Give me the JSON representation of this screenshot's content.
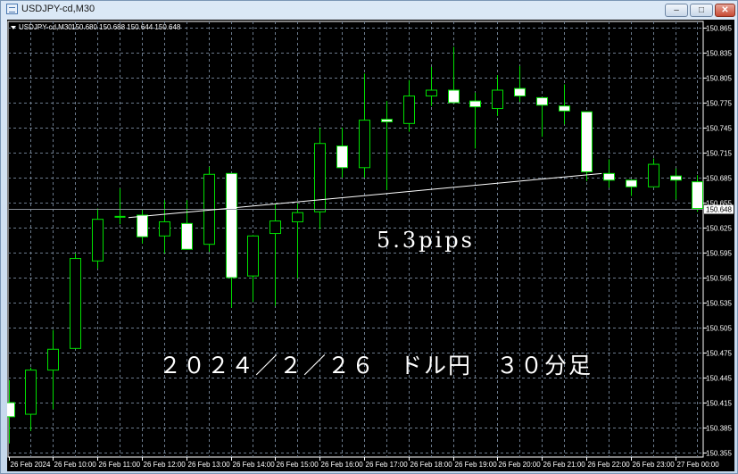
{
  "window": {
    "title": "USDJPY-cd,M30",
    "buttons": {
      "minimize": "–",
      "maximize": "□",
      "close": "✕"
    }
  },
  "chart_header": {
    "symbol": "USDJPY-cd,M30",
    "values": "150.680 150.688 150.644 150.648",
    "menu_icon": "triangle-down-icon"
  },
  "colors": {
    "background": "#000000",
    "grid": "#6b7a8c",
    "bull_body": "#000000",
    "bear_body": "#ffffff",
    "candle_outline": "#00e000",
    "text": "#ffffff",
    "trendline": "#ffffff",
    "bid_line": "#8a9099"
  },
  "chart_data": {
    "type": "candlestick",
    "timeframe": "M30",
    "ylim": [
      150.355,
      150.865
    ],
    "grid": true,
    "price_ticks": [
      "150.865",
      "150.835",
      "150.805",
      "150.775",
      "150.745",
      "150.715",
      "150.685",
      "150.655",
      "150.625",
      "150.595",
      "150.565",
      "150.535",
      "150.505",
      "150.475",
      "150.445",
      "150.415",
      "150.385",
      "150.355"
    ],
    "time_ticks": [
      "26 Feb 2024",
      "26 Feb 10:00",
      "26 Feb 11:00",
      "26 Feb 12:00",
      "26 Feb 13:00",
      "26 Feb 14:00",
      "26 Feb 15:00",
      "26 Feb 16:00",
      "26 Feb 17:00",
      "26 Feb 18:00",
      "26 Feb 19:00",
      "26 Feb 20:00",
      "26 Feb 21:00",
      "26 Feb 22:00",
      "26 Feb 23:00",
      "27 Feb 00:00"
    ],
    "current_price": "150.648",
    "columns": [
      "open",
      "high",
      "low",
      "close"
    ],
    "candles": [
      [
        150.415,
        150.442,
        150.366,
        150.398
      ],
      [
        150.401,
        150.457,
        150.381,
        150.454
      ],
      [
        150.454,
        150.502,
        150.407,
        150.479
      ],
      [
        150.48,
        150.594,
        150.48,
        150.588
      ],
      [
        150.585,
        150.648,
        150.576,
        150.635
      ],
      [
        150.638,
        150.672,
        150.629,
        150.638
      ],
      [
        150.64,
        150.646,
        150.606,
        150.614
      ],
      [
        150.615,
        150.658,
        150.594,
        150.632
      ],
      [
        150.63,
        150.658,
        150.599,
        150.599
      ],
      [
        150.605,
        150.698,
        150.596,
        150.689
      ],
      [
        150.69,
        150.69,
        150.529,
        150.565
      ],
      [
        150.567,
        150.616,
        150.536,
        150.615
      ],
      [
        150.618,
        150.654,
        150.531,
        150.633
      ],
      [
        150.632,
        150.654,
        150.564,
        150.643
      ],
      [
        150.644,
        150.745,
        150.623,
        150.726
      ],
      [
        150.723,
        150.745,
        150.685,
        150.697
      ],
      [
        150.697,
        150.81,
        150.685,
        150.754
      ],
      [
        150.755,
        150.777,
        150.67,
        150.752
      ],
      [
        150.75,
        150.802,
        150.74,
        150.783
      ],
      [
        150.783,
        150.818,
        150.771,
        150.79
      ],
      [
        150.79,
        150.842,
        150.775,
        150.775
      ],
      [
        150.777,
        150.787,
        150.72,
        150.77
      ],
      [
        150.768,
        150.808,
        150.759,
        150.79
      ],
      [
        150.792,
        150.819,
        150.776,
        150.783
      ],
      [
        150.781,
        150.781,
        150.734,
        150.772
      ],
      [
        150.771,
        150.797,
        150.749,
        150.765
      ],
      [
        150.764,
        150.764,
        150.681,
        150.692
      ],
      [
        150.69,
        150.707,
        150.673,
        150.682
      ],
      [
        150.682,
        150.682,
        150.663,
        150.674
      ],
      [
        150.674,
        150.708,
        150.674,
        150.701
      ],
      [
        150.687,
        150.696,
        150.659,
        150.682
      ],
      [
        150.68,
        150.688,
        150.644,
        150.648
      ]
    ],
    "trendline": {
      "start_price": 150.637,
      "end_price": 150.69
    }
  },
  "annotations": {
    "pips": "5.3pips",
    "caption": "２０２４／２／２６　ドル円　３０分足"
  }
}
